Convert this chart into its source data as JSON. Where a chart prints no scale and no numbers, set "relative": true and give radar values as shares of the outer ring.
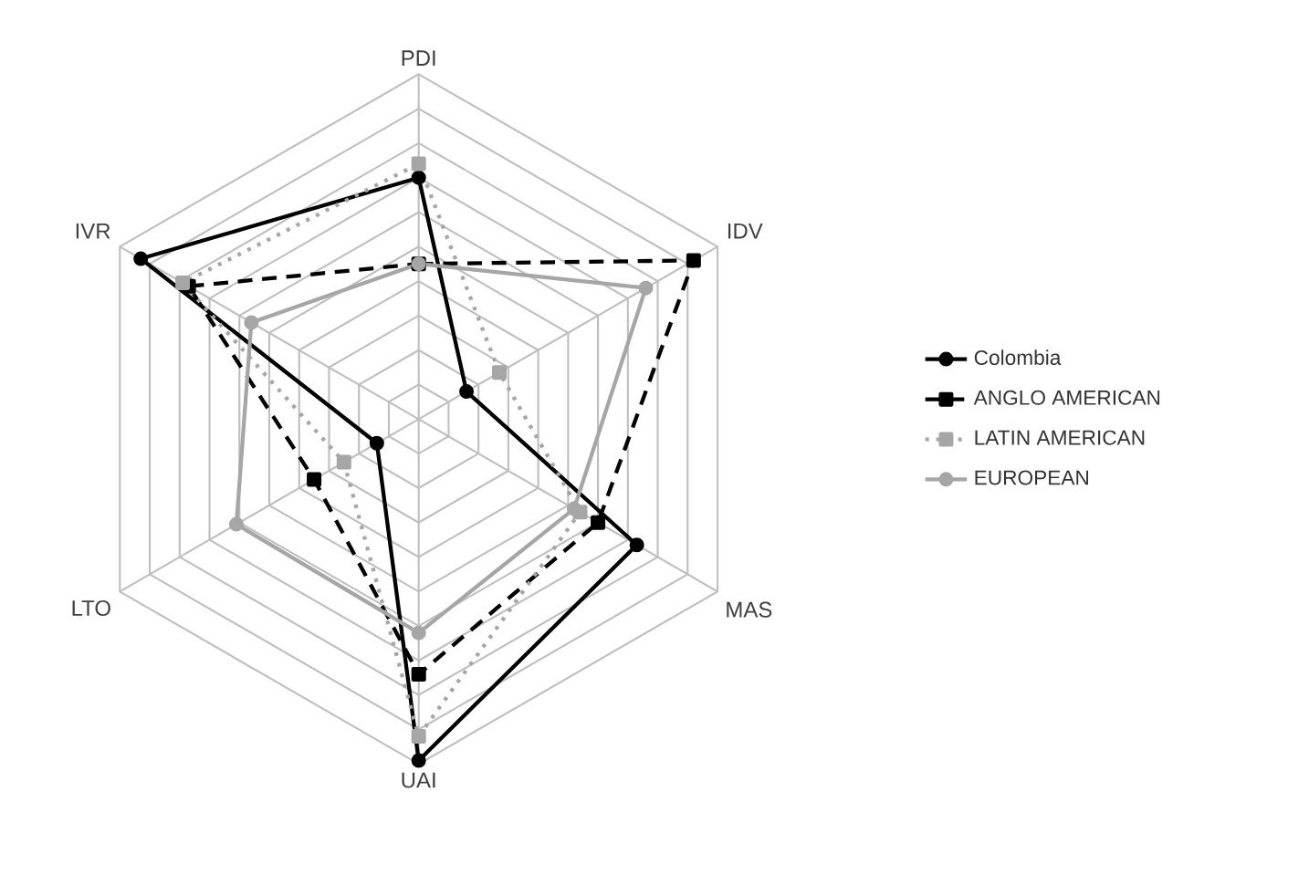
{
  "chart_data": {
    "type": "radar",
    "relative": true,
    "categories": [
      "PDI",
      "IDV",
      "MAS",
      "UAI",
      "LTO",
      "IVR"
    ],
    "legend": "right",
    "series": [
      {
        "name": "Colombia",
        "color": "#000000",
        "marker": "circle",
        "line_style": "solid",
        "values": [
          0.7,
          0.16,
          0.73,
          0.99,
          0.14,
          0.93
        ]
      },
      {
        "name": "ANGLO AMERICAN",
        "color": "#000000",
        "marker": "square",
        "line_style": "dashed",
        "values": [
          0.45,
          0.92,
          0.6,
          0.74,
          0.35,
          0.77
        ]
      },
      {
        "name": "LATIN AMERICAN",
        "color": "#a6a6a6",
        "marker": "square",
        "line_style": "dotted",
        "values": [
          0.74,
          0.27,
          0.54,
          0.92,
          0.25,
          0.79
        ]
      },
      {
        "name": "EUROPEAN",
        "color": "#a6a6a6",
        "marker": "circle",
        "line_style": "solid",
        "values": [
          0.45,
          0.76,
          0.52,
          0.62,
          0.61,
          0.56
        ]
      }
    ]
  }
}
